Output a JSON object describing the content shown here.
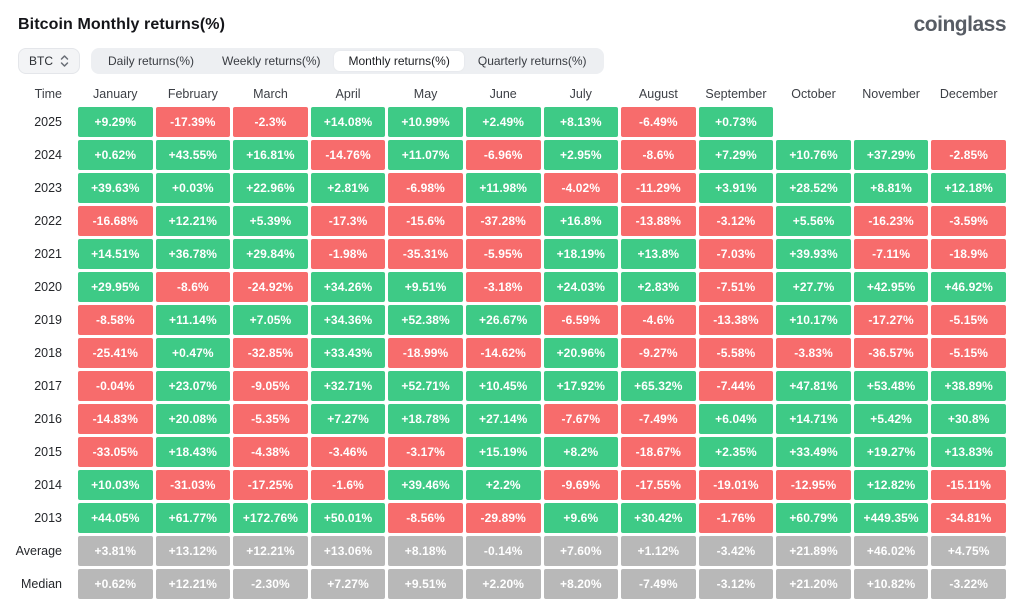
{
  "header": {
    "title": "Bitcoin Monthly returns(%)",
    "logo": "coinglass"
  },
  "toolbar": {
    "symbol": "BTC",
    "symbol_arrows_icon": "up-down-chevrons",
    "tabs": [
      {
        "label": "Daily returns(%)",
        "active": false
      },
      {
        "label": "Weekly returns(%)",
        "active": false
      },
      {
        "label": "Monthly returns(%)",
        "active": true
      },
      {
        "label": "Quarterly returns(%)",
        "active": false
      }
    ]
  },
  "table": {
    "time_header": "Time",
    "months": [
      "January",
      "February",
      "March",
      "April",
      "May",
      "June",
      "July",
      "August",
      "September",
      "October",
      "November",
      "December"
    ],
    "rows": [
      {
        "label": "2025",
        "type": "year",
        "values": [
          "+9.29%",
          "-17.39%",
          "-2.3%",
          "+14.08%",
          "+10.99%",
          "+2.49%",
          "+8.13%",
          "-6.49%",
          "+0.73%",
          "",
          "",
          ""
        ]
      },
      {
        "label": "2024",
        "type": "year",
        "values": [
          "+0.62%",
          "+43.55%",
          "+16.81%",
          "-14.76%",
          "+11.07%",
          "-6.96%",
          "+2.95%",
          "-8.6%",
          "+7.29%",
          "+10.76%",
          "+37.29%",
          "-2.85%"
        ]
      },
      {
        "label": "2023",
        "type": "year",
        "values": [
          "+39.63%",
          "+0.03%",
          "+22.96%",
          "+2.81%",
          "-6.98%",
          "+11.98%",
          "-4.02%",
          "-11.29%",
          "+3.91%",
          "+28.52%",
          "+8.81%",
          "+12.18%"
        ]
      },
      {
        "label": "2022",
        "type": "year",
        "values": [
          "-16.68%",
          "+12.21%",
          "+5.39%",
          "-17.3%",
          "-15.6%",
          "-37.28%",
          "+16.8%",
          "-13.88%",
          "-3.12%",
          "+5.56%",
          "-16.23%",
          "-3.59%"
        ]
      },
      {
        "label": "2021",
        "type": "year",
        "values": [
          "+14.51%",
          "+36.78%",
          "+29.84%",
          "-1.98%",
          "-35.31%",
          "-5.95%",
          "+18.19%",
          "+13.8%",
          "-7.03%",
          "+39.93%",
          "-7.11%",
          "-18.9%"
        ]
      },
      {
        "label": "2020",
        "type": "year",
        "values": [
          "+29.95%",
          "-8.6%",
          "-24.92%",
          "+34.26%",
          "+9.51%",
          "-3.18%",
          "+24.03%",
          "+2.83%",
          "-7.51%",
          "+27.7%",
          "+42.95%",
          "+46.92%"
        ]
      },
      {
        "label": "2019",
        "type": "year",
        "values": [
          "-8.58%",
          "+11.14%",
          "+7.05%",
          "+34.36%",
          "+52.38%",
          "+26.67%",
          "-6.59%",
          "-4.6%",
          "-13.38%",
          "+10.17%",
          "-17.27%",
          "-5.15%"
        ]
      },
      {
        "label": "2018",
        "type": "year",
        "values": [
          "-25.41%",
          "+0.47%",
          "-32.85%",
          "+33.43%",
          "-18.99%",
          "-14.62%",
          "+20.96%",
          "-9.27%",
          "-5.58%",
          "-3.83%",
          "-36.57%",
          "-5.15%"
        ]
      },
      {
        "label": "2017",
        "type": "year",
        "values": [
          "-0.04%",
          "+23.07%",
          "-9.05%",
          "+32.71%",
          "+52.71%",
          "+10.45%",
          "+17.92%",
          "+65.32%",
          "-7.44%",
          "+47.81%",
          "+53.48%",
          "+38.89%"
        ]
      },
      {
        "label": "2016",
        "type": "year",
        "values": [
          "-14.83%",
          "+20.08%",
          "-5.35%",
          "+7.27%",
          "+18.78%",
          "+27.14%",
          "-7.67%",
          "-7.49%",
          "+6.04%",
          "+14.71%",
          "+5.42%",
          "+30.8%"
        ]
      },
      {
        "label": "2015",
        "type": "year",
        "values": [
          "-33.05%",
          "+18.43%",
          "-4.38%",
          "-3.46%",
          "-3.17%",
          "+15.19%",
          "+8.2%",
          "-18.67%",
          "+2.35%",
          "+33.49%",
          "+19.27%",
          "+13.83%"
        ]
      },
      {
        "label": "2014",
        "type": "year",
        "values": [
          "+10.03%",
          "-31.03%",
          "-17.25%",
          "-1.6%",
          "+39.46%",
          "+2.2%",
          "-9.69%",
          "-17.55%",
          "-19.01%",
          "-12.95%",
          "+12.82%",
          "-15.11%"
        ]
      },
      {
        "label": "2013",
        "type": "year",
        "values": [
          "+44.05%",
          "+61.77%",
          "+172.76%",
          "+50.01%",
          "-8.56%",
          "-29.89%",
          "+9.6%",
          "+30.42%",
          "-1.76%",
          "+60.79%",
          "+449.35%",
          "-34.81%"
        ]
      },
      {
        "label": "Average",
        "type": "summary",
        "values": [
          "+3.81%",
          "+13.12%",
          "+12.21%",
          "+13.06%",
          "+8.18%",
          "-0.14%",
          "+7.60%",
          "+1.12%",
          "-3.42%",
          "+21.89%",
          "+46.02%",
          "+4.75%"
        ]
      },
      {
        "label": "Median",
        "type": "summary",
        "values": [
          "+0.62%",
          "+12.21%",
          "-2.30%",
          "+7.27%",
          "+9.51%",
          "+2.20%",
          "+8.20%",
          "-7.49%",
          "-3.12%",
          "+21.20%",
          "+10.82%",
          "-3.22%"
        ]
      }
    ]
  },
  "colors": {
    "pos": "#3eca86",
    "neg": "#f76c6c",
    "neu": "#b8b8b8"
  }
}
